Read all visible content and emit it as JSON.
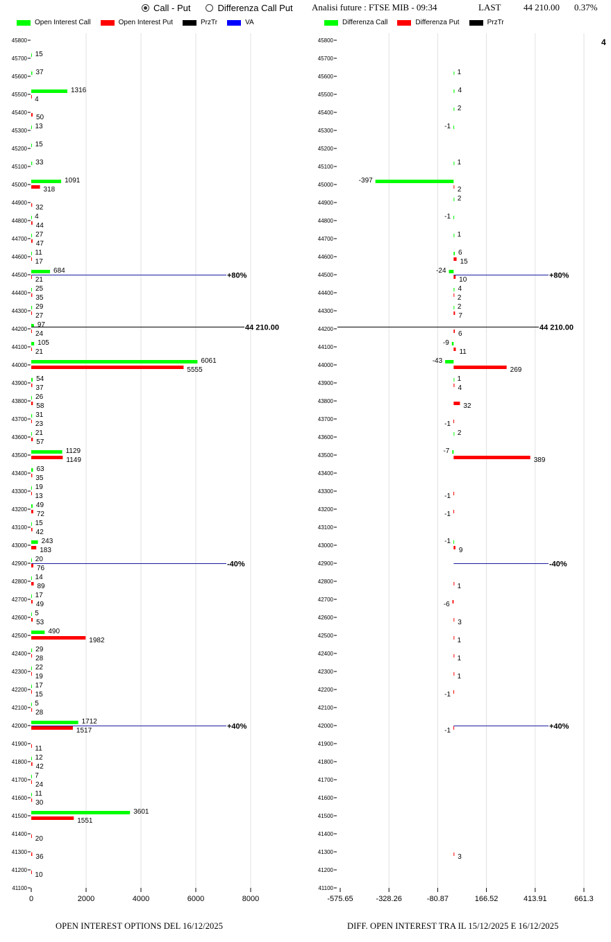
{
  "controls": {
    "radio_call_put": "Call - Put",
    "radio_diff": "Differenza Call Put",
    "selected": "Call - Put"
  },
  "header": {
    "analysis": "Analisi future : FTSE MIB - 09:34",
    "last_label": "LAST",
    "last_value": "44 210.00",
    "change": "0.37%"
  },
  "colors": {
    "call": "#00ff00",
    "put": "#ff0000",
    "przTr": "#000000",
    "va": "#0000ff",
    "grid": "#e0e0e0"
  },
  "chart_data": [
    {
      "type": "bar",
      "orientation": "horizontal",
      "title": "OPEN INTEREST OPTIONS DEL 16/12/2025",
      "legend": [
        "Open Interest Call",
        "Open Interest Put",
        "PrzTr",
        "VA"
      ],
      "legend_position": "top-left",
      "xlim": [
        0,
        8000
      ],
      "xticks": [
        "0",
        "2000",
        "4000",
        "6000",
        "8000"
      ],
      "strikes": [
        45800,
        45700,
        45600,
        45500,
        45400,
        45300,
        45200,
        45100,
        45000,
        44900,
        44800,
        44700,
        44600,
        44500,
        44400,
        44300,
        44200,
        44100,
        44000,
        43900,
        43800,
        43700,
        43600,
        43500,
        43400,
        43300,
        43200,
        43100,
        43000,
        42900,
        42800,
        42700,
        42600,
        42500,
        42400,
        42300,
        42200,
        42100,
        42000,
        41900,
        41800,
        41700,
        41600,
        41500,
        41400,
        41300,
        41200,
        41100
      ],
      "series": [
        {
          "name": "Open Interest Call",
          "values": [
            0,
            15,
            37,
            1316,
            0,
            13,
            15,
            33,
            1091,
            0,
            4,
            27,
            11,
            684,
            25,
            29,
            97,
            105,
            6061,
            54,
            26,
            31,
            21,
            1129,
            63,
            19,
            49,
            15,
            243,
            20,
            14,
            17,
            5,
            490,
            29,
            22,
            17,
            5,
            1712,
            0,
            12,
            7,
            11,
            3601,
            0,
            0,
            0,
            0
          ]
        },
        {
          "name": "Open Interest Put",
          "values": [
            0,
            0,
            0,
            4,
            50,
            0,
            0,
            0,
            318,
            32,
            44,
            47,
            17,
            21,
            35,
            27,
            24,
            21,
            5555,
            37,
            58,
            23,
            57,
            1149,
            35,
            13,
            72,
            42,
            183,
            76,
            89,
            49,
            53,
            1982,
            28,
            19,
            15,
            28,
            1517,
            11,
            42,
            24,
            30,
            1551,
            20,
            36,
            10,
            0
          ]
        }
      ],
      "annotations": [
        {
          "label": "+80%",
          "strike": 44500,
          "series": "VA"
        },
        {
          "label": "44 210.00",
          "strike": 44210,
          "series": "PrzTr"
        },
        {
          "label": "-40%",
          "strike": 42900,
          "series": "VA"
        },
        {
          "label": "+40%",
          "strike": 42000,
          "series": "VA"
        }
      ]
    },
    {
      "type": "bar",
      "orientation": "horizontal",
      "title": "DIFF. OPEN INTEREST TRA IL 15/12/2025 E 16/12/2025",
      "legend": [
        "Differenza Call",
        "Differenza Put",
        "PrzTr"
      ],
      "legend_position": "top-left",
      "xlim": [
        -575.65,
        661.3
      ],
      "xticks": [
        "-575.65",
        "-328.26",
        "-80.87",
        "166.52",
        "413.91",
        "661.3"
      ],
      "strikes": [
        45800,
        45700,
        45600,
        45500,
        45400,
        45300,
        45200,
        45100,
        45000,
        44900,
        44800,
        44700,
        44600,
        44500,
        44400,
        44300,
        44200,
        44100,
        44000,
        43900,
        43800,
        43700,
        43600,
        43500,
        43400,
        43300,
        43200,
        43100,
        43000,
        42900,
        42800,
        42700,
        42600,
        42500,
        42400,
        42300,
        42200,
        42100,
        42000,
        41900,
        41800,
        41700,
        41600,
        41500,
        41400,
        41300,
        41200,
        41100
      ],
      "series": [
        {
          "name": "Differenza Call",
          "values": [
            0,
            0,
            1,
            4,
            2,
            -1,
            0,
            1,
            -397,
            2,
            -1,
            1,
            6,
            -24,
            4,
            2,
            0,
            -9,
            -43,
            1,
            0,
            0,
            2,
            -7,
            0,
            0,
            0,
            0,
            -1,
            0,
            0,
            0,
            0,
            0,
            0,
            0,
            0,
            0,
            0,
            0,
            0,
            0,
            0,
            0,
            0,
            0,
            0,
            0
          ]
        },
        {
          "name": "Differenza Put",
          "values": [
            0,
            0,
            0,
            0,
            0,
            0,
            0,
            0,
            2,
            0,
            0,
            0,
            15,
            10,
            2,
            7,
            6,
            11,
            269,
            4,
            32,
            -1,
            0,
            389,
            0,
            -1,
            -1,
            0,
            9,
            0,
            1,
            -6,
            3,
            1,
            1,
            1,
            -1,
            0,
            -1,
            0,
            0,
            0,
            0,
            0,
            0,
            3,
            0,
            0
          ]
        }
      ],
      "annotations": [
        {
          "label": "+80%",
          "strike": 44500,
          "series": "VA"
        },
        {
          "label": "44 210.00",
          "strike": 44210,
          "series": "PrzTr"
        },
        {
          "label": "-40%",
          "strike": 42900,
          "series": "VA"
        },
        {
          "label": "+40%",
          "strike": 42000,
          "series": "VA"
        }
      ]
    }
  ],
  "edge_label": "4"
}
